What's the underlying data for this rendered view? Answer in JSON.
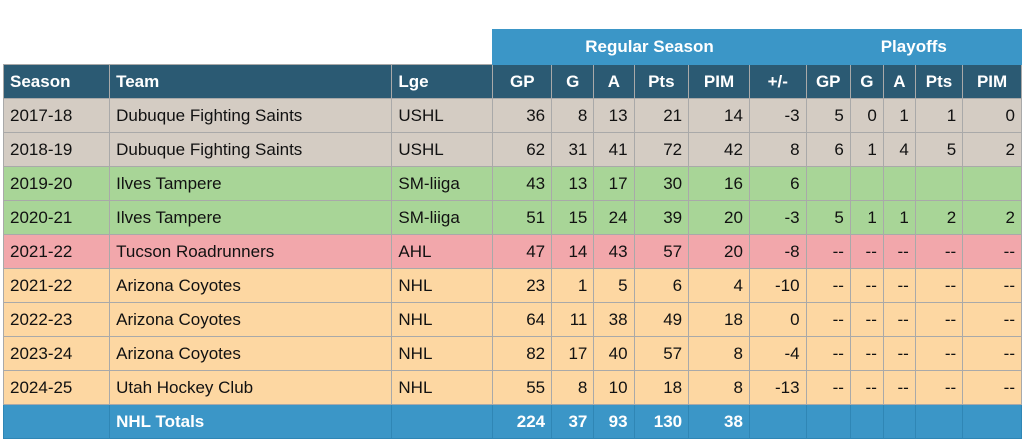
{
  "group_headers": {
    "regular": "Regular Season",
    "playoffs": "Playoffs"
  },
  "columns": [
    "Season",
    "Team",
    "Lge",
    "GP",
    "G",
    "A",
    "Pts",
    "PIM",
    "+/-",
    "GP",
    "G",
    "A",
    "Pts",
    "PIM"
  ],
  "rows": [
    {
      "season": "2017-18",
      "team": "Dubuque Fighting Saints",
      "lge": "USHL",
      "gp": "36",
      "g": "8",
      "a": "13",
      "pts": "21",
      "pim": "14",
      "pm": "-3",
      "pgp": "5",
      "pg": "0",
      "pa": "1",
      "ppts": "1",
      "ppim": "0"
    },
    {
      "season": "2018-19",
      "team": "Dubuque Fighting Saints",
      "lge": "USHL",
      "gp": "62",
      "g": "31",
      "a": "41",
      "pts": "72",
      "pim": "42",
      "pm": "8",
      "pgp": "6",
      "pg": "1",
      "pa": "4",
      "ppts": "5",
      "ppim": "2"
    },
    {
      "season": "2019-20",
      "team": "Ilves Tampere",
      "lge": "SM-liiga",
      "gp": "43",
      "g": "13",
      "a": "17",
      "pts": "30",
      "pim": "16",
      "pm": "6",
      "pgp": "",
      "pg": "",
      "pa": "",
      "ppts": "",
      "ppim": ""
    },
    {
      "season": "2020-21",
      "team": "Ilves Tampere",
      "lge": "SM-liiga",
      "gp": "51",
      "g": "15",
      "a": "24",
      "pts": "39",
      "pim": "20",
      "pm": "-3",
      "pgp": "5",
      "pg": "1",
      "pa": "1",
      "ppts": "2",
      "ppim": "2"
    },
    {
      "season": "2021-22",
      "team": "Tucson Roadrunners",
      "lge": "AHL",
      "gp": "47",
      "g": "14",
      "a": "43",
      "pts": "57",
      "pim": "20",
      "pm": "-8",
      "pgp": "--",
      "pg": "--",
      "pa": "--",
      "ppts": "--",
      "ppim": "--"
    },
    {
      "season": "2021-22",
      "team": "Arizona Coyotes",
      "lge": "NHL",
      "gp": "23",
      "g": "1",
      "a": "5",
      "pts": "6",
      "pim": "4",
      "pm": "-10",
      "pgp": "--",
      "pg": "--",
      "pa": "--",
      "ppts": "--",
      "ppim": "--"
    },
    {
      "season": "2022-23",
      "team": "Arizona Coyotes",
      "lge": "NHL",
      "gp": "64",
      "g": "11",
      "a": "38",
      "pts": "49",
      "pim": "18",
      "pm": "0",
      "pgp": "--",
      "pg": "--",
      "pa": "--",
      "ppts": "--",
      "ppim": "--"
    },
    {
      "season": "2023-24",
      "team": "Arizona Coyotes",
      "lge": "NHL",
      "gp": "82",
      "g": "17",
      "a": "40",
      "pts": "57",
      "pim": "8",
      "pm": "-4",
      "pgp": "--",
      "pg": "--",
      "pa": "--",
      "ppts": "--",
      "ppim": "--"
    },
    {
      "season": "2024-25",
      "team": "Utah Hockey Club",
      "lge": "NHL",
      "gp": "55",
      "g": "8",
      "a": "10",
      "pts": "18",
      "pim": "8",
      "pm": "-13",
      "pgp": "--",
      "pg": "--",
      "pa": "--",
      "ppts": "--",
      "ppim": "--"
    }
  ],
  "totals": {
    "label": "NHL Totals",
    "gp": "224",
    "g": "37",
    "a": "93",
    "pts": "130",
    "pim": "38"
  },
  "colors": {
    "header": "#2b5a73",
    "group": "#3b96c7",
    "ushl": "#d4ccc3",
    "liiga": "#a8d597",
    "ahl": "#f2a7ab",
    "nhl": "#fdd7a2"
  }
}
